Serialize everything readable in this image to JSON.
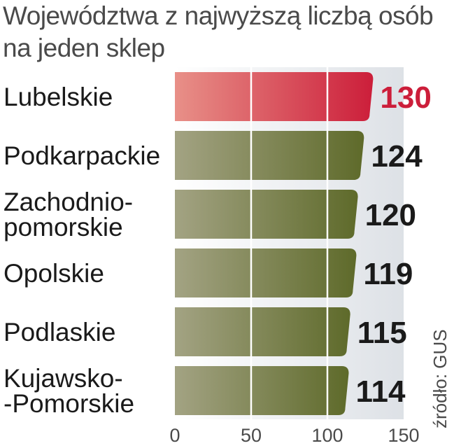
{
  "chart_data": {
    "type": "bar",
    "orientation": "horizontal",
    "title": "Województwa z najwyższą liczbą osób na jeden sklep",
    "title_lines": [
      "Województwa z najwyższą liczbą osób",
      "na jeden sklep"
    ],
    "source": "źródło: GUS",
    "categories": [
      [
        "Lubelskie"
      ],
      [
        "Podkarpackie"
      ],
      [
        "Zachodnio-",
        "pomorskie"
      ],
      [
        "Opolskie"
      ],
      [
        "Podlaskie"
      ],
      [
        "Kujawsko-",
        "-Pomorskie"
      ]
    ],
    "values": [
      130,
      124,
      120,
      119,
      115,
      114
    ],
    "value_labels": [
      "130",
      "124",
      "120",
      "119",
      "115",
      "114"
    ],
    "highlight_index": 0,
    "xlim": [
      0,
      150
    ],
    "x_ticks": [
      "0",
      "50",
      "100",
      "150"
    ],
    "grid": true,
    "colors": {
      "highlight_start": "#e89088",
      "highlight_end": "#cc1e3a",
      "bar_start": "#a3a383",
      "bar_end": "#5e6a2a",
      "highlight_label": "#cc1e3a",
      "label": "#1a1a1a",
      "panel_start": "#ffffff",
      "panel_end": "#dde1e6"
    }
  }
}
